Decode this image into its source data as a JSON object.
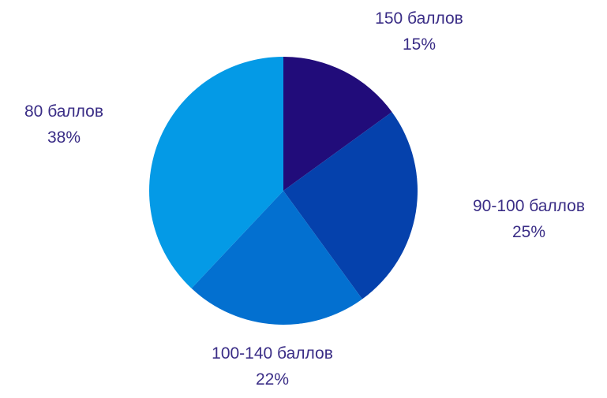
{
  "chart_data": {
    "type": "pie",
    "start_angle_deg": 0,
    "direction": "clockwise",
    "slices": [
      {
        "label": "150 баллов",
        "value": 15,
        "value_label": "15%",
        "color": "#210c7a"
      },
      {
        "label": "90-100 баллов",
        "value": 25,
        "value_label": "25%",
        "color": "#0541ac"
      },
      {
        "label": "100-140 баллов",
        "value": 22,
        "value_label": "22%",
        "color": "#0370d0"
      },
      {
        "label": "80 баллов",
        "value": 38,
        "value_label": "38%",
        "color": "#049ae6"
      }
    ],
    "label_color": "#3a2d86"
  }
}
